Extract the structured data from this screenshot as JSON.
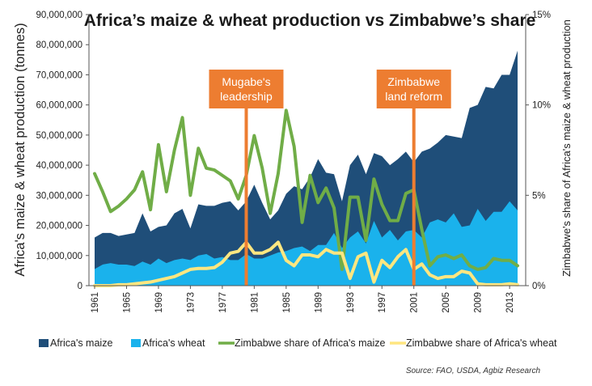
{
  "chart_data": {
    "type": "area",
    "title": "Africa’s maize & wheat production vs Zimbabwe’s share",
    "ylabel": "Africa's maize & wheat production (tonnes)",
    "y2label": "Zimbabwe's share of Africa's maize & wheat production",
    "xlim": [
      1961,
      2014
    ],
    "ylim": [
      0,
      90000000
    ],
    "y2lim": [
      0,
      15
    ],
    "x_tick_labels": [
      "1961",
      "1965",
      "1969",
      "1973",
      "1977",
      "1981",
      "1985",
      "1989",
      "1993",
      "1997",
      "2001",
      "2005",
      "2009",
      "2013"
    ],
    "y_tick_labels": [
      "0",
      "10,000,000",
      "20,000,000",
      "30,000,000",
      "40,000,000",
      "50,000,000",
      "60,000,000",
      "70,000,000",
      "80,000,000",
      "90,000,000"
    ],
    "y2_tick_labels": [
      "0%",
      "5%",
      "10%",
      "15%"
    ],
    "grid": false,
    "legend_position": "bottom",
    "colors": {
      "maize": "#1f4e79",
      "wheat": "#1ab2ec",
      "zim_maize": "#70ad47",
      "zim_wheat": "#ffe680",
      "callout": "#ed7d31"
    },
    "x": [
      1961,
      1962,
      1963,
      1964,
      1965,
      1966,
      1967,
      1968,
      1969,
      1970,
      1971,
      1972,
      1973,
      1974,
      1975,
      1976,
      1977,
      1978,
      1979,
      1980,
      1981,
      1982,
      1983,
      1984,
      1985,
      1986,
      1987,
      1988,
      1989,
      1990,
      1991,
      1992,
      1993,
      1994,
      1995,
      1996,
      1997,
      1998,
      1999,
      2000,
      2001,
      2002,
      2003,
      2004,
      2005,
      2006,
      2007,
      2008,
      2009,
      2010,
      2011,
      2012,
      2013,
      2014
    ],
    "series": [
      {
        "name": "Africa's maize",
        "kind": "area",
        "axis": "left",
        "values": [
          16000000,
          17500000,
          17500000,
          16500000,
          17000000,
          17500000,
          24000000,
          18000000,
          19500000,
          20000000,
          24000000,
          25500000,
          19000000,
          27000000,
          26500000,
          26500000,
          27500000,
          28000000,
          25000000,
          28000000,
          33500000,
          27500000,
          22000000,
          25000000,
          30500000,
          33000000,
          32000000,
          36000000,
          42000000,
          37500000,
          37000000,
          28000000,
          40000000,
          43500000,
          37000000,
          44000000,
          43000000,
          40000000,
          42000000,
          44500000,
          41000000,
          44500000,
          45500000,
          47500000,
          50000000,
          49500000,
          49000000,
          59000000,
          60000000,
          66000000,
          65500000,
          70000000,
          70000000,
          78000000
        ]
      },
      {
        "name": "Africa's wheat",
        "kind": "area",
        "axis": "left",
        "values": [
          5500000,
          7000000,
          7500000,
          7000000,
          7000000,
          6500000,
          8000000,
          7000000,
          9000000,
          7500000,
          8500000,
          9000000,
          8500000,
          10000000,
          10500000,
          9000000,
          9500000,
          8500000,
          8500000,
          10500000,
          9000000,
          9000000,
          10000000,
          11000000,
          11500000,
          12500000,
          13000000,
          11500000,
          13500000,
          13500000,
          17500000,
          12500000,
          16000000,
          18000000,
          14000000,
          21500000,
          16000000,
          18500000,
          15000000,
          18000000,
          18500000,
          16000000,
          21000000,
          22000000,
          21000000,
          24000000,
          19500000,
          20000000,
          25500000,
          21500000,
          24500000,
          24500000,
          28000000,
          25000000
        ]
      },
      {
        "name": "Zimbabwe share of Africa's maize",
        "kind": "line",
        "axis": "right",
        "values": [
          6.2,
          5.2,
          4.1,
          4.4,
          4.8,
          5.3,
          6.3,
          4.2,
          7.8,
          5.2,
          7.5,
          9.3,
          5.0,
          7.6,
          6.5,
          6.4,
          6.1,
          5.8,
          4.8,
          6.1,
          8.3,
          6.5,
          4.0,
          6.2,
          9.7,
          7.7,
          3.5,
          6.1,
          4.6,
          5.4,
          4.3,
          0.9,
          4.9,
          4.9,
          2.5,
          5.9,
          4.5,
          3.6,
          3.6,
          5.1,
          5.3,
          3.1,
          1.1,
          1.6,
          1.7,
          1.5,
          1.7,
          1.1,
          0.9,
          1.0,
          1.5,
          1.4,
          1.4,
          1.1
        ]
      },
      {
        "name": "Zimbabwe share of Africa's wheat",
        "kind": "line",
        "axis": "right",
        "values": [
          0.0,
          0.0,
          0.0,
          0.05,
          0.05,
          0.1,
          0.15,
          0.2,
          0.3,
          0.4,
          0.5,
          0.7,
          0.9,
          0.95,
          0.95,
          1.0,
          1.3,
          1.8,
          1.9,
          2.4,
          1.8,
          1.8,
          2.0,
          2.4,
          1.4,
          1.1,
          1.7,
          1.7,
          1.6,
          2.0,
          1.8,
          1.8,
          0.4,
          1.6,
          1.8,
          0.2,
          1.4,
          1.0,
          1.6,
          2.0,
          0.9,
          1.2,
          0.6,
          0.4,
          0.5,
          0.5,
          0.8,
          0.7,
          0.1,
          0.05,
          0.05,
          0.05,
          0.1,
          0.05
        ]
      }
    ],
    "annotations": [
      {
        "label_lines": [
          "Mugabe's",
          "leadership"
        ],
        "x": 1980
      },
      {
        "label_lines": [
          "Zimbabwe",
          "land reform"
        ],
        "x": 2001
      }
    ],
    "source": "Source: FAO, USDA, Agbiz Research"
  }
}
